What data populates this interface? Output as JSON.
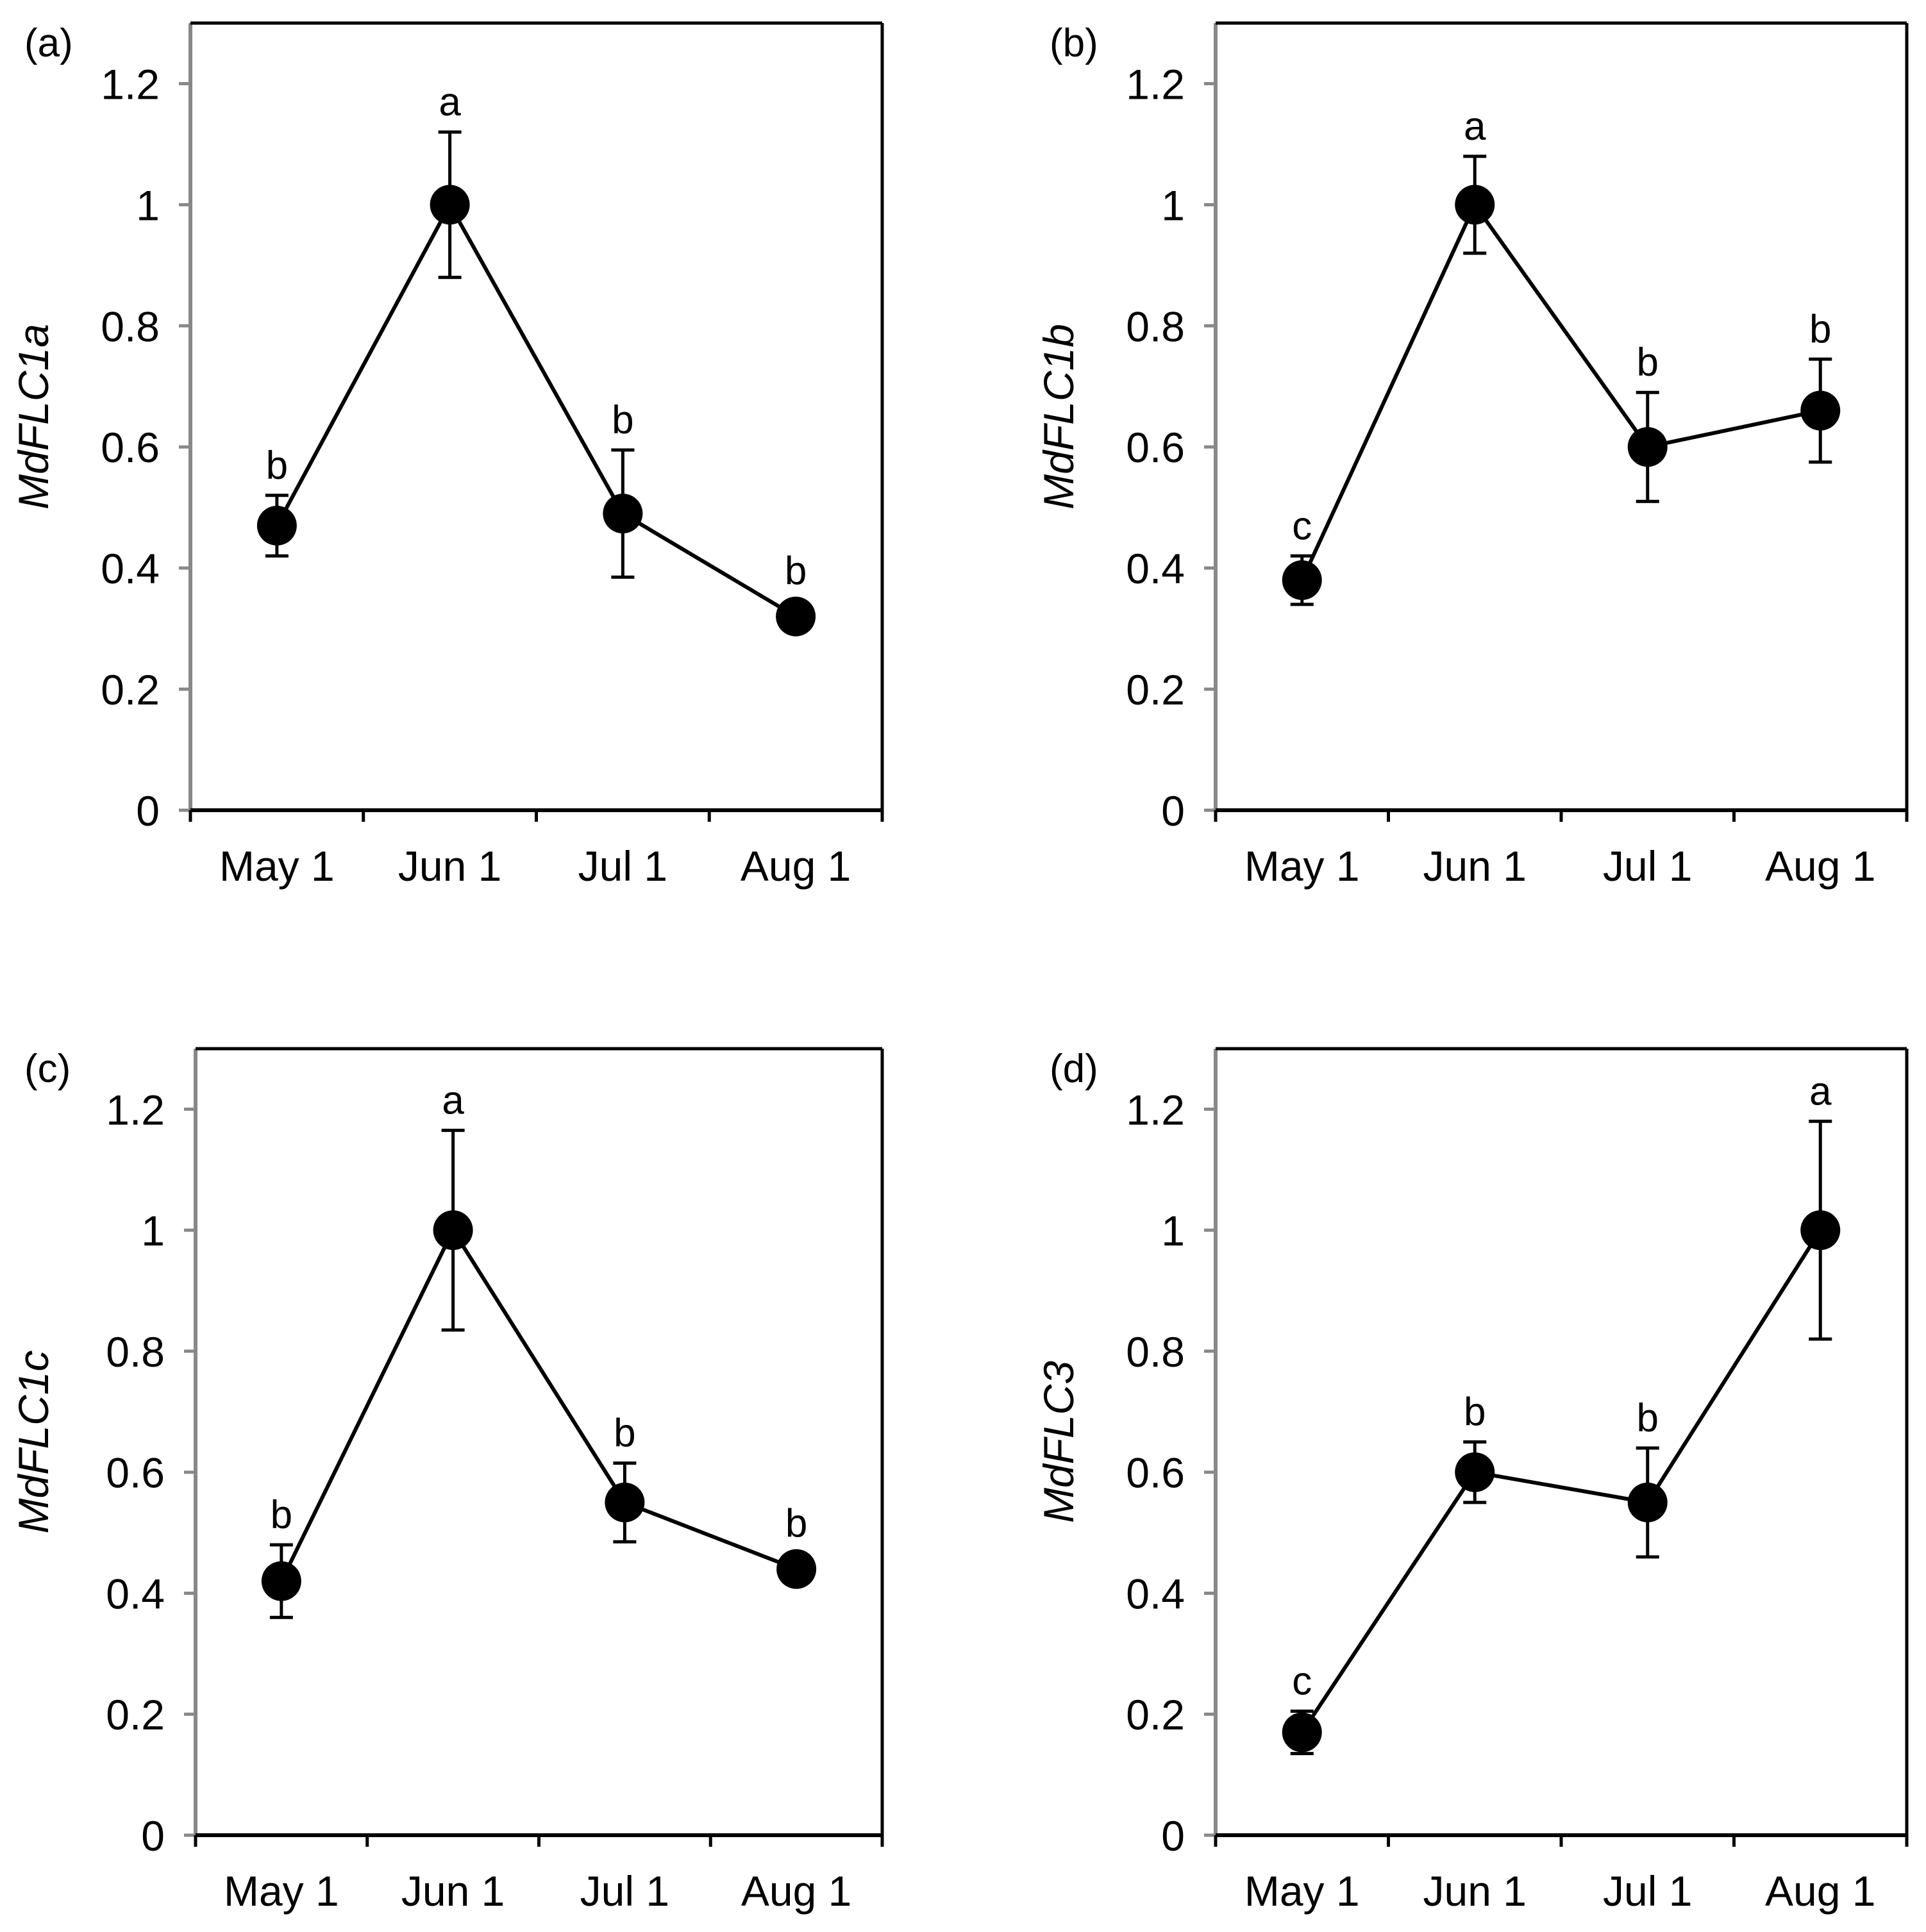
{
  "chart_data": [
    {
      "type": "line",
      "panel": "(a)",
      "ylabel": "MdFLC1a",
      "categories": [
        "May 1",
        "Jun 1",
        "Jul 1",
        "Aug 1"
      ],
      "values": [
        0.47,
        1.0,
        0.49,
        0.32
      ],
      "errors": [
        0.05,
        0.12,
        0.105,
        0.01
      ],
      "significance": [
        "b",
        "a",
        "b",
        "b"
      ],
      "ylim": [
        0,
        1.3
      ],
      "yticks": [
        "0",
        "0.2",
        "0.4",
        "0.6",
        "0.8",
        "1",
        "1.2"
      ]
    },
    {
      "type": "line",
      "panel": "(b)",
      "ylabel": "MdFLC1b",
      "categories": [
        "May 1",
        "Jun 1",
        "Jul 1",
        "Aug 1"
      ],
      "values": [
        0.38,
        1.0,
        0.6,
        0.66
      ],
      "errors": [
        0.04,
        0.08,
        0.09,
        0.085
      ],
      "significance": [
        "c",
        "a",
        "b",
        "b"
      ],
      "ylim": [
        0,
        1.3
      ],
      "yticks": [
        "0",
        "0.2",
        "0.4",
        "0.6",
        "0.8",
        "1",
        "1.2"
      ]
    },
    {
      "type": "line",
      "panel": "(c)",
      "ylabel": "MdFLC1c",
      "categories": [
        "May 1",
        "Jun 1",
        "Jul 1",
        "Aug 1"
      ],
      "values": [
        0.42,
        1.0,
        0.55,
        0.44
      ],
      "errors": [
        0.06,
        0.165,
        0.065,
        0.01
      ],
      "significance": [
        "b",
        "a",
        "b",
        "b"
      ],
      "ylim": [
        0,
        1.3
      ],
      "yticks": [
        "0",
        "0.2",
        "0.4",
        "0.6",
        "0.8",
        "1",
        "1.2"
      ]
    },
    {
      "type": "line",
      "panel": "(d)",
      "ylabel": "MdFLC3",
      "categories": [
        "May 1",
        "Jun 1",
        "Jul 1",
        "Aug 1"
      ],
      "values": [
        0.17,
        0.6,
        0.55,
        1.0
      ],
      "errors": [
        0.035,
        0.05,
        0.09,
        0.18
      ],
      "significance": [
        "c",
        "b",
        "b",
        "a"
      ],
      "ylim": [
        0,
        1.3
      ],
      "yticks": [
        "0",
        "0.2",
        "0.4",
        "0.6",
        "0.8",
        "1",
        "1.2"
      ]
    }
  ]
}
